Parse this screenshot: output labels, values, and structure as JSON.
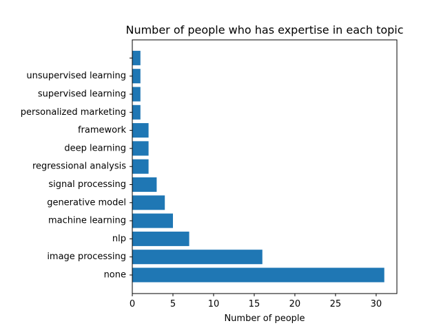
{
  "chart_data": {
    "type": "bar",
    "orientation": "horizontal",
    "title": "Number of people who has expertise in each topic",
    "xlabel": "Number of people",
    "ylabel": "",
    "xlim": [
      0,
      32.55
    ],
    "xticks": [
      0,
      5,
      10,
      15,
      20,
      25,
      30
    ],
    "grid": false,
    "legend": "none",
    "bar_color": "#1f77b4",
    "categories": [
      "none",
      "image processing",
      "nlp",
      "machine learning",
      "generative model",
      "signal processing",
      "regressional analysis",
      "deep learning",
      "framework",
      "personalized marketing",
      "supervised learning",
      "unsupervised learning",
      ""
    ],
    "values": [
      31,
      16,
      7,
      5,
      4,
      3,
      2,
      2,
      2,
      1,
      1,
      1,
      1
    ]
  }
}
